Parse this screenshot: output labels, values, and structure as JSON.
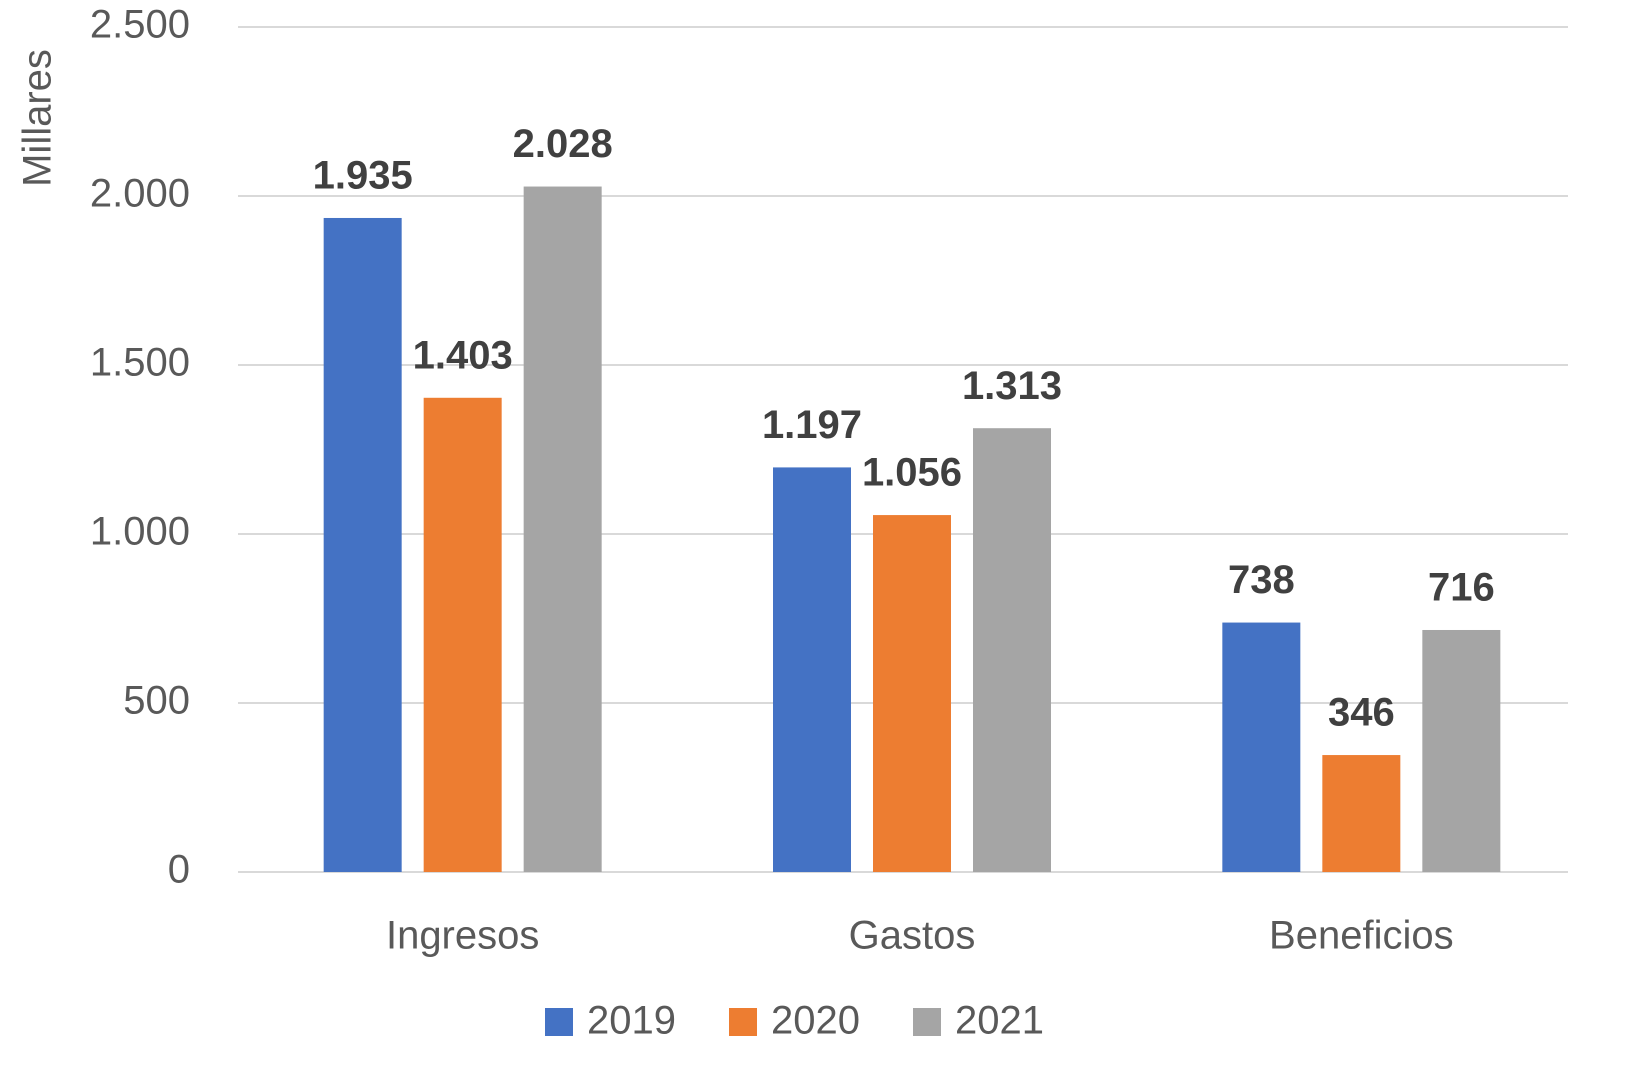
{
  "chart_data": {
    "type": "bar",
    "y_label": "Millares",
    "categories": [
      "Ingresos",
      "Gastos",
      "Beneficios"
    ],
    "series": [
      {
        "name": "2019",
        "color": "#4472c4",
        "values": [
          1935,
          1197,
          738
        ],
        "value_labels": [
          "1.935",
          "1.197",
          "738"
        ]
      },
      {
        "name": "2020",
        "color": "#ed7d31",
        "values": [
          1403,
          1056,
          346
        ],
        "value_labels": [
          "1.403",
          "1.056",
          "346"
        ]
      },
      {
        "name": "2021",
        "color": "#a5a5a5",
        "values": [
          2028,
          1313,
          716
        ],
        "value_labels": [
          "2.028",
          "1.313",
          "716"
        ]
      }
    ],
    "ylim": [
      0,
      2500
    ],
    "yticks": [
      0,
      500,
      {
        "value": 1000,
        "label": "1.000"
      },
      {
        "value": 1500,
        "label": "1.500"
      },
      {
        "value": 2000,
        "label": "2.000"
      },
      {
        "value": 2500,
        "label": "2.500"
      }
    ],
    "grid": true,
    "legend": "bottom"
  }
}
